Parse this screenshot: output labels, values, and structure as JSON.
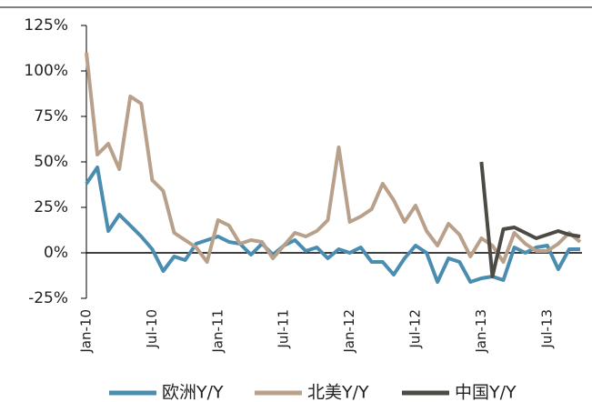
{
  "chart_data": {
    "type": "line",
    "categories": [
      "Jan-10",
      null,
      null,
      null,
      null,
      null,
      "Jul-10",
      null,
      null,
      null,
      null,
      null,
      "Jan-11",
      null,
      null,
      null,
      null,
      null,
      "Jul-11",
      null,
      null,
      null,
      null,
      null,
      "Jan-12",
      null,
      null,
      null,
      null,
      null,
      "Jul-12",
      null,
      null,
      null,
      null,
      null,
      "Jan-13",
      null,
      null,
      null,
      null,
      null,
      "Jul-13",
      null,
      null,
      null
    ],
    "series": [
      {
        "name": "欧洲Y/Y",
        "color": "#4a8db0",
        "values": [
          38,
          47,
          12,
          21,
          15,
          9,
          2,
          -10,
          -2,
          -4,
          5,
          7,
          9,
          6,
          5,
          -1,
          5,
          -1,
          4,
          7,
          1,
          3,
          -3,
          2,
          0,
          3,
          -5,
          -5,
          -12,
          -3,
          4,
          0,
          -16,
          -3,
          -5,
          -16,
          -14,
          -13,
          -15,
          3,
          0,
          3,
          4,
          -9,
          2,
          2
        ]
      },
      {
        "name": "北美Y/Y",
        "color": "#b8a08a",
        "values": [
          110,
          54,
          60,
          46,
          86,
          82,
          40,
          34,
          11,
          7,
          3,
          -5,
          18,
          15,
          5,
          7,
          6,
          -3,
          4,
          11,
          9,
          12,
          18,
          58,
          17,
          20,
          24,
          38,
          29,
          17,
          26,
          12,
          4,
          16,
          10,
          -2,
          8,
          4,
          -5,
          11,
          5,
          1,
          1,
          5,
          11,
          6
        ]
      },
      {
        "name": "中国Y/Y",
        "color": "#4d4a44",
        "values": [
          null,
          null,
          null,
          null,
          null,
          null,
          null,
          null,
          null,
          null,
          null,
          null,
          null,
          null,
          null,
          null,
          null,
          null,
          null,
          null,
          null,
          null,
          null,
          null,
          null,
          null,
          null,
          null,
          null,
          null,
          null,
          null,
          null,
          null,
          null,
          null,
          50,
          -13,
          13,
          14,
          11,
          8,
          10,
          12,
          10,
          9
        ]
      }
    ],
    "ylim": [
      -25,
      125
    ],
    "yticks": [
      {
        "value": -25,
        "label": "-25%"
      },
      {
        "value": 0,
        "label": "0%"
      },
      {
        "value": 25,
        "label": "25%"
      },
      {
        "value": 50,
        "label": "50%"
      },
      {
        "value": 75,
        "label": "75%"
      },
      {
        "value": 100,
        "label": "100%"
      },
      {
        "value": 125,
        "label": "125%"
      }
    ]
  }
}
